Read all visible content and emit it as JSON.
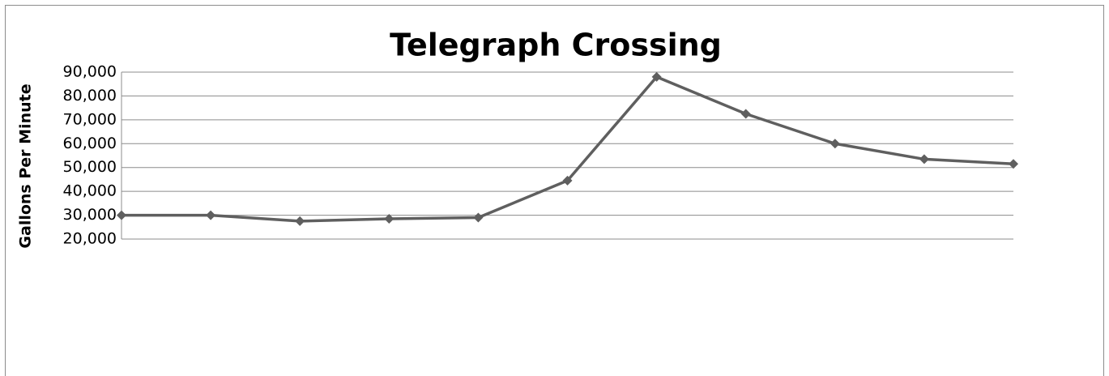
{
  "chart_data": {
    "type": "line",
    "title": "Telegraph Crossing",
    "y_label": "Gallons Per Minute",
    "categories": [
      null,
      null,
      null,
      null,
      null,
      null,
      null,
      null,
      null,
      null,
      null
    ],
    "series": [
      {
        "name": null,
        "color": "#5f5f5f",
        "values": [
          30000,
          30000,
          27500,
          28500,
          29000,
          44500,
          88000,
          72500,
          60000,
          53500,
          51500
        ]
      }
    ],
    "ylim": [
      20000,
      90000
    ],
    "yticks": [
      {
        "value": 20000,
        "label": "20,000"
      },
      {
        "value": 30000,
        "label": "30,000"
      },
      {
        "value": 40000,
        "label": "40,000"
      },
      {
        "value": 50000,
        "label": "50,000"
      },
      {
        "value": 60000,
        "label": "60,000"
      },
      {
        "value": 70000,
        "label": "70,000"
      },
      {
        "value": 80000,
        "label": "80,000"
      },
      {
        "value": 90000,
        "label": "90,000"
      }
    ],
    "grid": true,
    "marker": "diamond"
  }
}
